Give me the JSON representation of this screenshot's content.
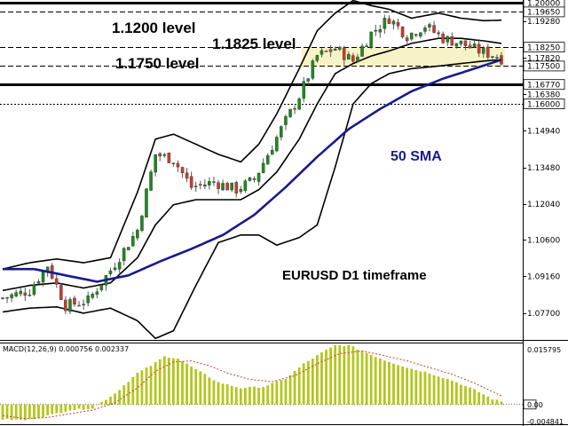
{
  "chart_data": {
    "type": "candlestick",
    "instrument_title": "EURUSD D1 timeframe",
    "price_axis": {
      "range": [
        1.0664,
        1.2012
      ],
      "tick_labels": [
        "1.20000",
        "1.19650",
        "1.19280",
        "1.18250",
        "1.17820",
        "1.17500",
        "1.16770",
        "1.16380",
        "1.16000",
        "1.14940",
        "1.13480",
        "1.12040",
        "1.10600",
        "1.09160",
        "1.07700"
      ],
      "highlighted_labels": [
        "1.20000",
        "1.19650",
        "1.18250",
        "1.17500",
        "1.16770",
        "1.16000"
      ]
    },
    "level_lines": [
      {
        "value": 1.2,
        "style": "thick"
      },
      {
        "value": 1.1965,
        "style": "dashed"
      },
      {
        "value": 1.1825,
        "style": "dashed"
      },
      {
        "value": 1.175,
        "style": "dashed"
      },
      {
        "value": 1.1677,
        "style": "thick"
      },
      {
        "value": 1.16,
        "style": "dotted"
      }
    ],
    "zone": {
      "from": 1.175,
      "to": 1.1825,
      "color": "#f7f3c6"
    },
    "annotations": [
      {
        "text": "1.1200 level",
        "color": "#000000"
      },
      {
        "text": "1.1825 level",
        "color": "#000000"
      },
      {
        "text": "1.1750 level",
        "color": "#000000"
      },
      {
        "text": "50 SMA",
        "color": "#1a1a8c"
      }
    ],
    "candles": {
      "count": 112,
      "bull_color": "#1a8c1a",
      "bear_color": "#d23a2a",
      "close_anchors": [
        [
          0,
          1.083
        ],
        [
          6,
          1.086
        ],
        [
          10,
          1.096
        ],
        [
          14,
          1.08
        ],
        [
          19,
          1.082
        ],
        [
          24,
          1.094
        ],
        [
          30,
          1.11
        ],
        [
          34,
          1.14
        ],
        [
          38,
          1.138
        ],
        [
          42,
          1.127
        ],
        [
          47,
          1.129
        ],
        [
          52,
          1.126
        ],
        [
          56,
          1.13
        ],
        [
          62,
          1.15
        ],
        [
          66,
          1.163
        ],
        [
          70,
          1.179
        ],
        [
          74,
          1.182
        ],
        [
          78,
          1.177
        ],
        [
          82,
          1.188
        ],
        [
          86,
          1.194
        ],
        [
          90,
          1.187
        ],
        [
          94,
          1.191
        ],
        [
          98,
          1.186
        ],
        [
          102,
          1.184
        ],
        [
          106,
          1.181
        ],
        [
          110,
          1.179
        ],
        [
          111,
          1.178
        ]
      ]
    },
    "sma50": {
      "label": "50 SMA",
      "color": "#1a1a8c",
      "anchors": [
        [
          0,
          1.0945
        ],
        [
          7,
          1.0945
        ],
        [
          14,
          1.092
        ],
        [
          21,
          1.0895
        ],
        [
          28,
          1.092
        ],
        [
          35,
          1.0975
        ],
        [
          42,
          1.1025
        ],
        [
          49,
          1.108
        ],
        [
          56,
          1.116
        ],
        [
          63,
          1.127
        ],
        [
          70,
          1.139
        ],
        [
          77,
          1.15
        ],
        [
          84,
          1.158
        ],
        [
          91,
          1.165
        ],
        [
          98,
          1.17
        ],
        [
          105,
          1.174
        ],
        [
          111,
          1.1775
        ]
      ]
    },
    "bollinger": {
      "color": "#000000",
      "upper": [
        [
          0,
          1.0945
        ],
        [
          6,
          1.097
        ],
        [
          12,
          1.0985
        ],
        [
          18,
          1.097
        ],
        [
          24,
          1.099
        ],
        [
          30,
          1.125
        ],
        [
          34,
          1.146
        ],
        [
          38,
          1.148
        ],
        [
          43,
          1.144
        ],
        [
          48,
          1.14
        ],
        [
          53,
          1.137
        ],
        [
          57,
          1.144
        ],
        [
          61,
          1.156
        ],
        [
          66,
          1.174
        ],
        [
          70,
          1.189
        ],
        [
          74,
          1.196
        ],
        [
          78,
          1.201
        ],
        [
          82,
          1.199
        ],
        [
          86,
          1.1975
        ],
        [
          91,
          1.194
        ],
        [
          97,
          1.196
        ],
        [
          102,
          1.194
        ],
        [
          107,
          1.193
        ],
        [
          111,
          1.1932
        ]
      ],
      "middle": [
        [
          0,
          1.086
        ],
        [
          6,
          1.088
        ],
        [
          12,
          1.089
        ],
        [
          18,
          1.087
        ],
        [
          24,
          1.089
        ],
        [
          30,
          1.099
        ],
        [
          34,
          1.112
        ],
        [
          38,
          1.12
        ],
        [
          43,
          1.122
        ],
        [
          48,
          1.122
        ],
        [
          53,
          1.122
        ],
        [
          57,
          1.126
        ],
        [
          61,
          1.133
        ],
        [
          66,
          1.146
        ],
        [
          70,
          1.16
        ],
        [
          74,
          1.172
        ],
        [
          78,
          1.176
        ],
        [
          82,
          1.179
        ],
        [
          86,
          1.181
        ],
        [
          91,
          1.184
        ],
        [
          97,
          1.186
        ],
        [
          102,
          1.186
        ],
        [
          107,
          1.185
        ],
        [
          111,
          1.184
        ]
      ],
      "lower": [
        [
          0,
          1.0775
        ],
        [
          6,
          1.079
        ],
        [
          12,
          1.0795
        ],
        [
          18,
          1.077
        ],
        [
          24,
          1.079
        ],
        [
          30,
          1.074
        ],
        [
          34,
          1.067
        ],
        [
          38,
          1.07
        ],
        [
          43,
          1.088
        ],
        [
          48,
          1.105
        ],
        [
          53,
          1.108
        ],
        [
          57,
          1.108
        ],
        [
          61,
          1.104
        ],
        [
          66,
          1.107
        ],
        [
          70,
          1.112
        ],
        [
          74,
          1.135
        ],
        [
          78,
          1.16
        ],
        [
          82,
          1.168
        ],
        [
          86,
          1.172
        ],
        [
          91,
          1.174
        ],
        [
          97,
          1.175
        ],
        [
          102,
          1.176
        ],
        [
          107,
          1.177
        ],
        [
          111,
          1.1775
        ]
      ]
    },
    "macd": {
      "label": "MACD(12,26,9) 0.000756 0.002337",
      "range": [
        -0.004841,
        0.015795
      ],
      "tick_labels": [
        "0.015795",
        "0.00",
        "-0.004841"
      ],
      "bar_color": "#b3c61a",
      "signal_color": "#d23a2a",
      "bar_anchors": [
        [
          0,
          -0.004
        ],
        [
          5,
          -0.0042
        ],
        [
          10,
          -0.003
        ],
        [
          15,
          -0.0015
        ],
        [
          20,
          -0.001
        ],
        [
          25,
          0.003
        ],
        [
          30,
          0.0085
        ],
        [
          33,
          0.0105
        ],
        [
          36,
          0.013
        ],
        [
          39,
          0.0125
        ],
        [
          43,
          0.0095
        ],
        [
          48,
          0.006
        ],
        [
          53,
          0.0045
        ],
        [
          58,
          0.0048
        ],
        [
          63,
          0.007
        ],
        [
          67,
          0.011
        ],
        [
          71,
          0.014
        ],
        [
          74,
          0.016
        ],
        [
          77,
          0.016
        ],
        [
          80,
          0.0145
        ],
        [
          85,
          0.012
        ],
        [
          90,
          0.01
        ],
        [
          95,
          0.0085
        ],
        [
          100,
          0.0065
        ],
        [
          105,
          0.004
        ],
        [
          109,
          0.0015
        ],
        [
          111,
          0.0008
        ]
      ],
      "signal_anchors": [
        [
          0,
          -0.003
        ],
        [
          5,
          -0.0038
        ],
        [
          10,
          -0.0035
        ],
        [
          15,
          -0.0025
        ],
        [
          20,
          -0.0015
        ],
        [
          25,
          0.0005
        ],
        [
          30,
          0.0045
        ],
        [
          34,
          0.009
        ],
        [
          38,
          0.0115
        ],
        [
          42,
          0.0118
        ],
        [
          46,
          0.0105
        ],
        [
          50,
          0.0085
        ],
        [
          55,
          0.0068
        ],
        [
          60,
          0.0062
        ],
        [
          65,
          0.0078
        ],
        [
          70,
          0.011
        ],
        [
          75,
          0.0138
        ],
        [
          80,
          0.0145
        ],
        [
          85,
          0.0132
        ],
        [
          90,
          0.0118
        ],
        [
          95,
          0.01
        ],
        [
          100,
          0.0082
        ],
        [
          105,
          0.0058
        ],
        [
          109,
          0.0035
        ],
        [
          111,
          0.0023
        ]
      ]
    }
  }
}
